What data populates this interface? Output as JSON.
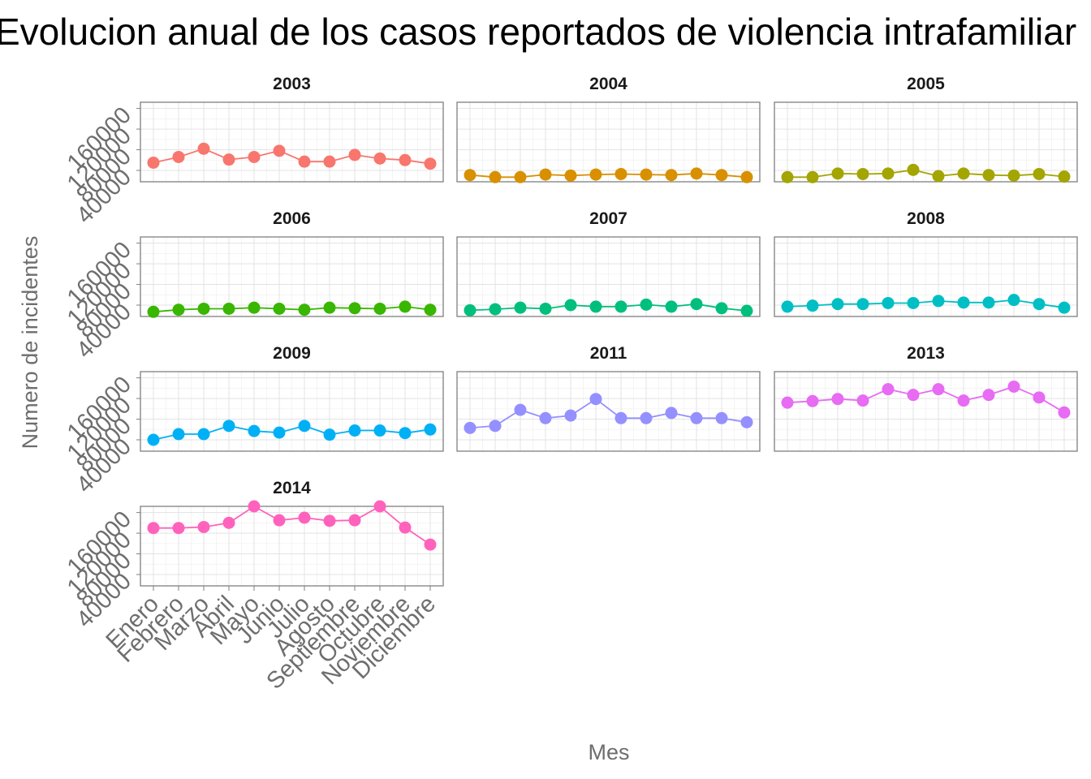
{
  "chart_data": {
    "type": "line",
    "title": "Evolucion anual de los casos reportados de violencia intrafamiliar",
    "xlabel": "Mes",
    "ylabel": "Numero de incidentes",
    "categories": [
      "Enero",
      "Febrero",
      "Marzo",
      "Abril",
      "Mayo",
      "Junio",
      "Julio",
      "Agosto",
      "Septiembre",
      "Octubre",
      "Noviembre",
      "Diciembre"
    ],
    "y_ticks": [
      "40000",
      "80000",
      "120000",
      "160000"
    ],
    "ylim": [
      18000,
      172000
    ],
    "grid": true,
    "legend": "none",
    "series": [
      {
        "name": "2003",
        "color": "#F8766D",
        "values": [
          55000,
          66000,
          82000,
          61000,
          66000,
          78000,
          57000,
          57000,
          70000,
          63000,
          60000,
          53000
        ]
      },
      {
        "name": "2004",
        "color": "#D89000",
        "values": [
          31000,
          27000,
          27000,
          32000,
          30000,
          32000,
          33000,
          32000,
          31000,
          34000,
          31000,
          27000
        ]
      },
      {
        "name": "2005",
        "color": "#A3A500",
        "values": [
          27000,
          27000,
          34000,
          33000,
          34000,
          41000,
          29000,
          34000,
          31000,
          30000,
          33000,
          28000
        ]
      },
      {
        "name": "2006",
        "color": "#39B600",
        "values": [
          27000,
          31000,
          33000,
          33000,
          35000,
          33000,
          31000,
          35000,
          34000,
          33000,
          37000,
          31000
        ]
      },
      {
        "name": "2007",
        "color": "#00BF7D",
        "values": [
          30000,
          32000,
          35000,
          33000,
          40000,
          37000,
          37000,
          41000,
          37000,
          42000,
          34000,
          29000
        ]
      },
      {
        "name": "2008",
        "color": "#00BFC4",
        "values": [
          37000,
          39000,
          42000,
          42000,
          44000,
          44000,
          48000,
          45000,
          45000,
          50000,
          42000,
          35000
        ]
      },
      {
        "name": "2009",
        "color": "#00B0F6",
        "values": [
          40000,
          51000,
          51000,
          67000,
          57000,
          54000,
          67000,
          50000,
          58000,
          58000,
          53000,
          60000
        ]
      },
      {
        "name": "2011",
        "color": "#9590FF",
        "values": [
          63000,
          67000,
          98000,
          82000,
          87000,
          119000,
          82000,
          82000,
          92000,
          82000,
          82000,
          74000
        ]
      },
      {
        "name": "2013",
        "color": "#E76BF3",
        "values": [
          112000,
          115000,
          119000,
          116000,
          138000,
          127000,
          138000,
          116000,
          127000,
          143000,
          122000,
          93000
        ]
      },
      {
        "name": "2014",
        "color": "#FF62BC",
        "values": [
          130000,
          130000,
          132000,
          140000,
          172000,
          145000,
          150000,
          144000,
          145000,
          172000,
          131000,
          98000
        ]
      }
    ]
  }
}
